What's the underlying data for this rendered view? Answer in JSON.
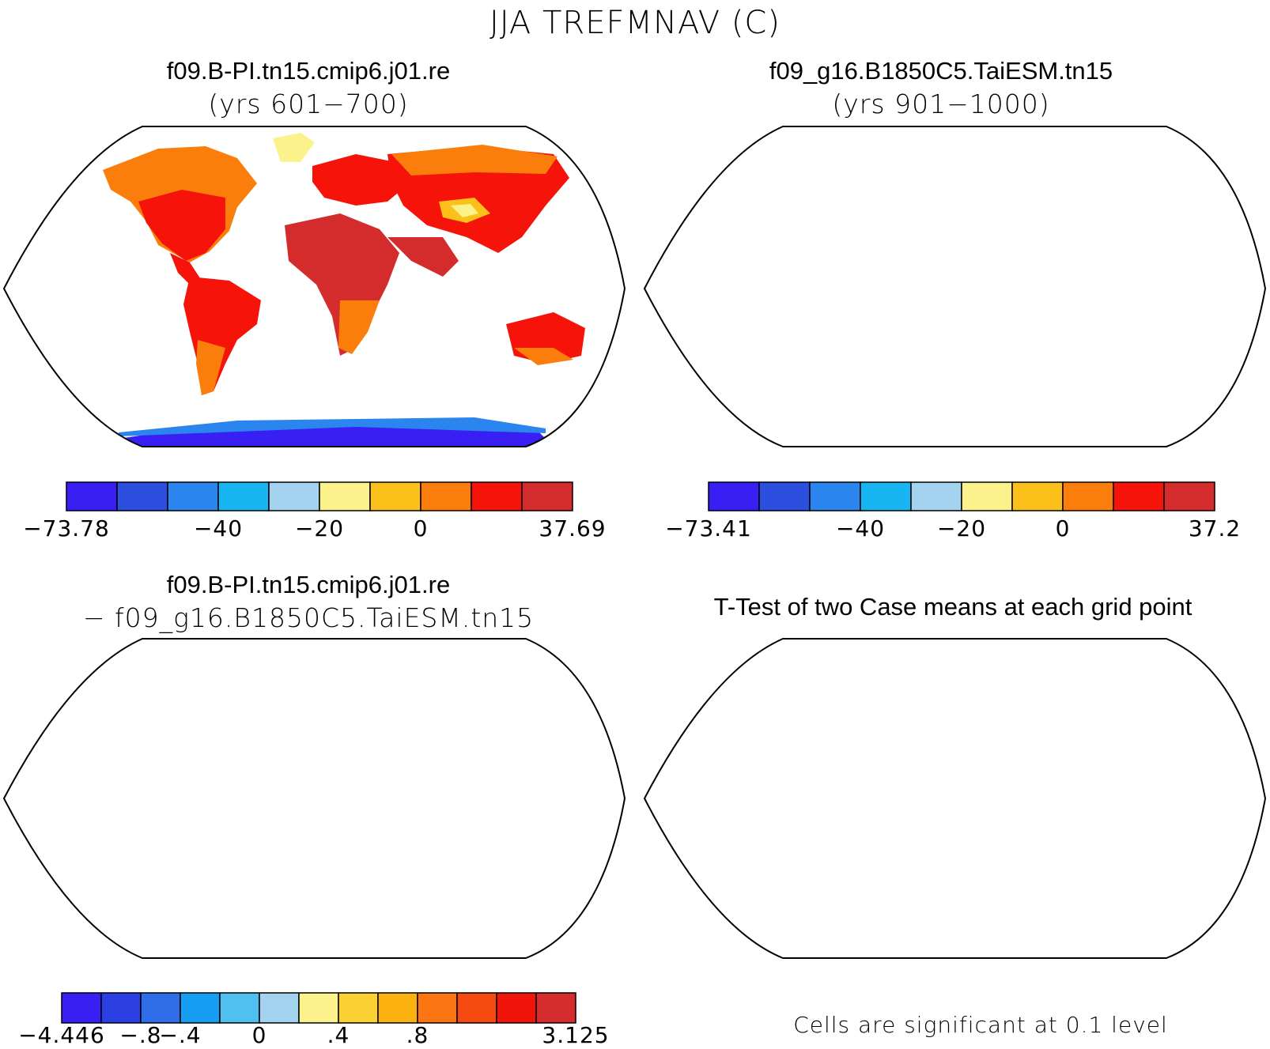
{
  "main_title": "JJA TREFMNAV (C)",
  "panels": [
    {
      "case": "f09.B-PI.tn15.cmip6.j01.re",
      "years": "(yrs 601−700)"
    },
    {
      "case": "f09_g16.B1850C5.TaiESM.tn15",
      "years": "(yrs 901−1000)"
    },
    {
      "case": "f09.B-PI.tn15.cmip6.j01.re",
      "subtitle": "− f09_g16.B1850C5.TaiESM.tn15"
    },
    {
      "title": "T-Test of two Case means at each grid point",
      "note": "Cells are significant at 0.1 level"
    }
  ],
  "colorbars": [
    {
      "colors": [
        "#3a1ff5",
        "#2d4fe0",
        "#2a86ee",
        "#17b6f2",
        "#a4d3ef",
        "#fbf28c",
        "#fbc01a",
        "#fb7d0b",
        "#f5130a",
        "#d42c2c"
      ],
      "labels": [
        "−73.78",
        "−40",
        "−20",
        "0",
        "37.69"
      ]
    },
    {
      "colors": [
        "#3a1ff5",
        "#2d4fe0",
        "#2a86ee",
        "#17b6f2",
        "#a4d3ef",
        "#fbf28c",
        "#fbc01a",
        "#fb7d0b",
        "#f5130a",
        "#d42c2c"
      ],
      "labels": [
        "−73.41",
        "−40",
        "−20",
        "0",
        "37.2"
      ]
    },
    {
      "colors": [
        "#3a1ff5",
        "#2b3fe3",
        "#2f6ee8",
        "#169ef2",
        "#4fc0f0",
        "#a4d3ef",
        "#fbf28c",
        "#fbd032",
        "#fbb211",
        "#fb7612",
        "#f54a10",
        "#f0150a",
        "#d42c2c"
      ],
      "labels": [
        "−4.446",
        "−.8",
        "−.4",
        "0",
        ".4",
        ".8",
        "3.125"
      ]
    }
  ],
  "map_colors": {
    "hot": "#d42c2c",
    "red": "#f5130a",
    "orange": "#fb7d0b",
    "amber": "#fbc01a",
    "yellow": "#fbf28c",
    "lightblue": "#a4d3ef",
    "blue": "#2a86ee",
    "violet": "#3a1ff5",
    "signif": "#f20000"
  }
}
